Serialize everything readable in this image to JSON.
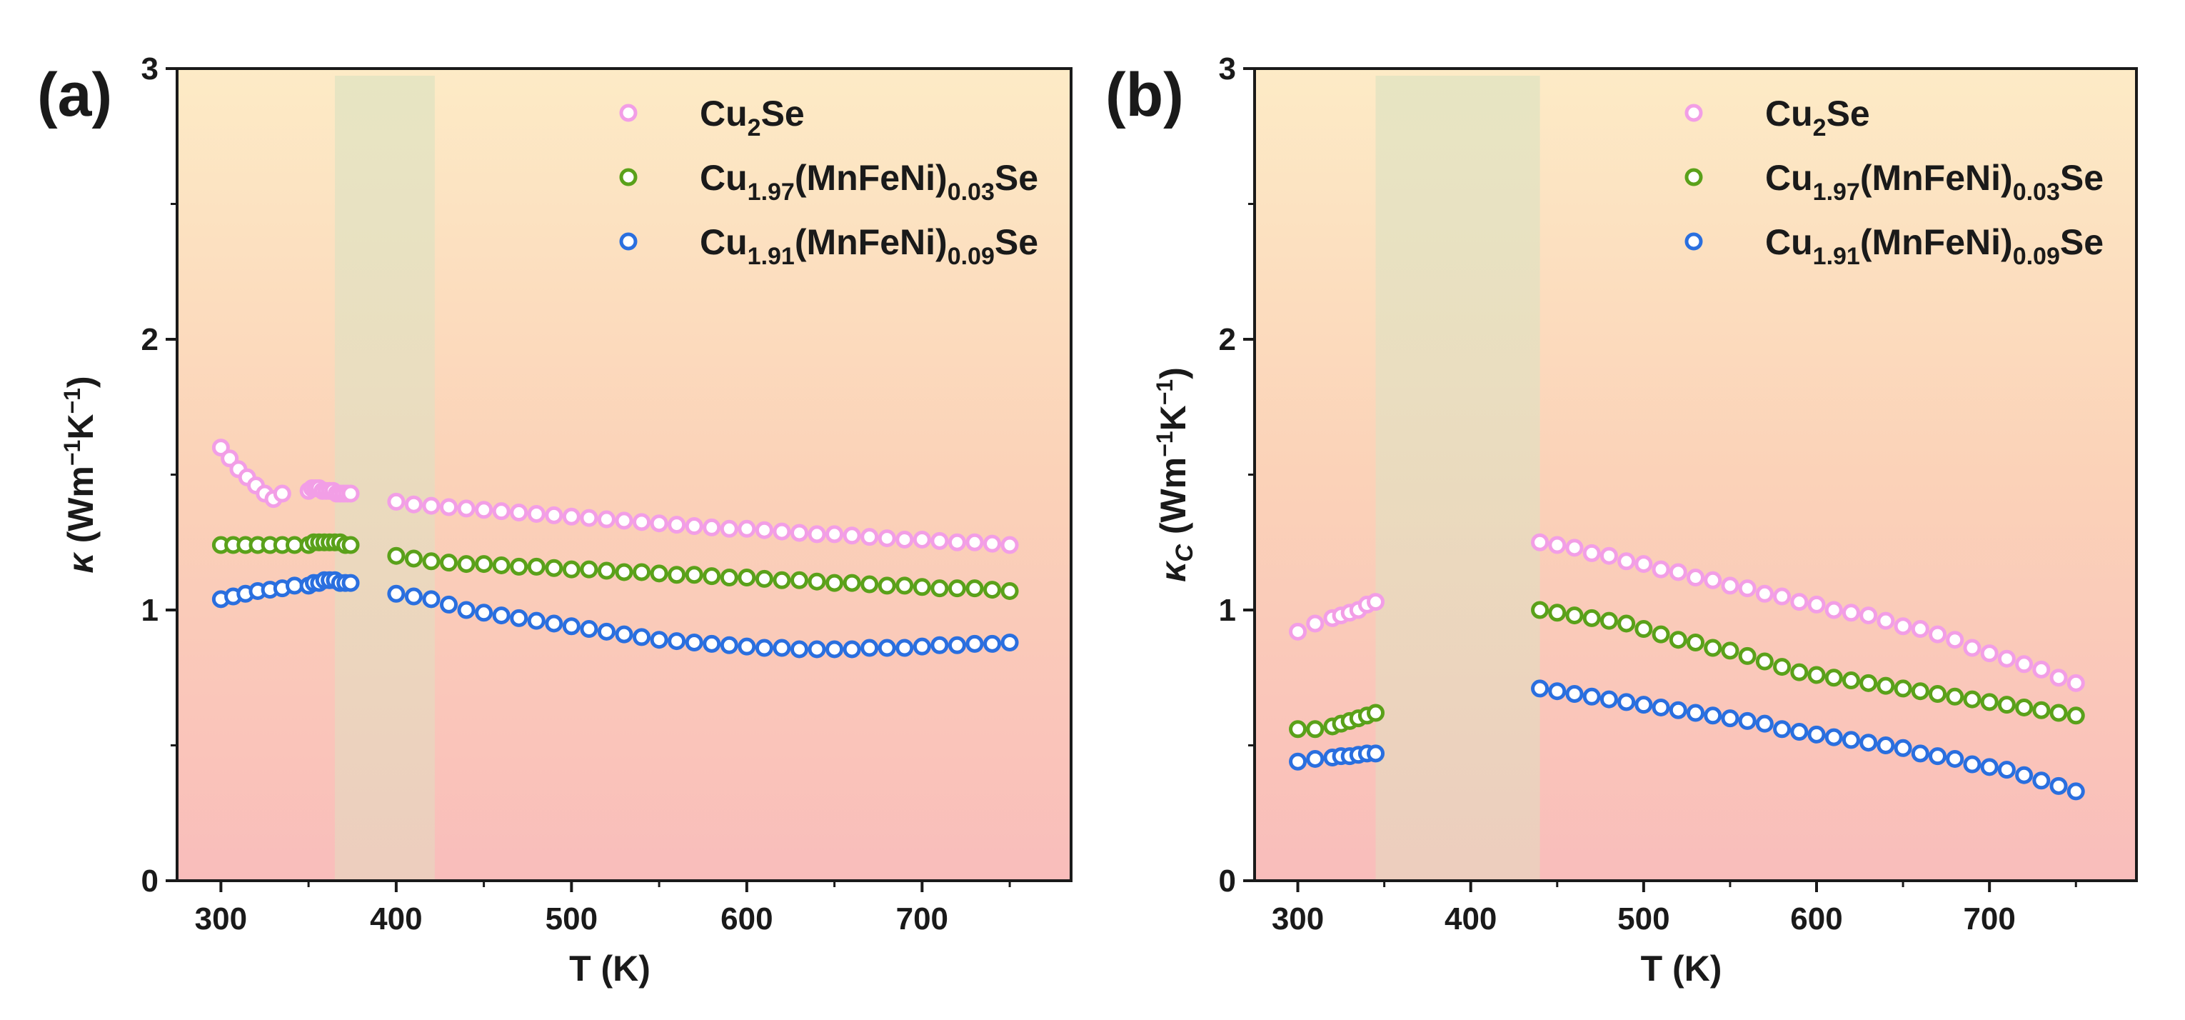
{
  "chart_data": [
    {
      "panel_label": "(a)",
      "type": "scatter",
      "xlabel": "T (K)",
      "ylabel": {
        "base": "κ",
        "open": " (Wm",
        "exp1": "−1",
        "mid": "K",
        "exp2": "−1",
        "close": ")"
      },
      "xlim": [
        275,
        785
      ],
      "ylim": [
        0,
        3
      ],
      "xticks": [
        300,
        400,
        500,
        600,
        700
      ],
      "yticks": [
        0,
        1,
        2,
        3
      ],
      "highlight_band": [
        365,
        422
      ],
      "legend_position": "top-right",
      "series": [
        {
          "name": "Cu2Se",
          "color": "#f29ee6",
          "x": [
            300,
            305,
            310,
            315,
            320,
            325,
            330,
            335,
            350,
            352,
            354,
            356,
            358,
            360,
            362,
            364,
            366,
            368,
            370,
            372,
            374,
            400,
            410,
            420,
            430,
            440,
            450,
            460,
            470,
            480,
            490,
            500,
            510,
            520,
            530,
            540,
            550,
            560,
            570,
            580,
            590,
            600,
            610,
            620,
            630,
            640,
            650,
            660,
            670,
            680,
            690,
            700,
            710,
            720,
            730,
            740,
            750
          ],
          "y": [
            1.6,
            1.56,
            1.52,
            1.49,
            1.46,
            1.43,
            1.41,
            1.43,
            1.44,
            1.45,
            1.45,
            1.45,
            1.44,
            1.44,
            1.44,
            1.44,
            1.43,
            1.43,
            1.43,
            1.43,
            1.43,
            1.4,
            1.39,
            1.385,
            1.38,
            1.375,
            1.37,
            1.365,
            1.36,
            1.355,
            1.35,
            1.345,
            1.34,
            1.335,
            1.33,
            1.325,
            1.32,
            1.315,
            1.31,
            1.305,
            1.3,
            1.3,
            1.295,
            1.29,
            1.285,
            1.28,
            1.28,
            1.275,
            1.27,
            1.265,
            1.26,
            1.26,
            1.255,
            1.25,
            1.25,
            1.245,
            1.24
          ]
        },
        {
          "name": "Cu1.97(MnFeNi)0.03Se",
          "color": "#5aa11a",
          "x": [
            300,
            307,
            314,
            321,
            328,
            335,
            342,
            350,
            353,
            356,
            359,
            362,
            365,
            368,
            371,
            374,
            400,
            410,
            420,
            430,
            440,
            450,
            460,
            470,
            480,
            490,
            500,
            510,
            520,
            530,
            540,
            550,
            560,
            570,
            580,
            590,
            600,
            610,
            620,
            630,
            640,
            650,
            660,
            670,
            680,
            690,
            700,
            710,
            720,
            730,
            740,
            750
          ],
          "y": [
            1.24,
            1.24,
            1.24,
            1.24,
            1.24,
            1.24,
            1.24,
            1.24,
            1.25,
            1.25,
            1.25,
            1.25,
            1.25,
            1.25,
            1.24,
            1.24,
            1.2,
            1.19,
            1.18,
            1.175,
            1.17,
            1.17,
            1.165,
            1.16,
            1.16,
            1.155,
            1.15,
            1.15,
            1.145,
            1.14,
            1.14,
            1.135,
            1.13,
            1.13,
            1.125,
            1.12,
            1.12,
            1.115,
            1.11,
            1.11,
            1.105,
            1.1,
            1.1,
            1.095,
            1.09,
            1.09,
            1.085,
            1.08,
            1.08,
            1.08,
            1.075,
            1.07
          ]
        },
        {
          "name": "Cu1.91(MnFeNi)0.09Se",
          "color": "#2a6fdf",
          "x": [
            300,
            307,
            314,
            321,
            328,
            335,
            342,
            350,
            353,
            356,
            359,
            362,
            365,
            368,
            371,
            374,
            400,
            410,
            420,
            430,
            440,
            450,
            460,
            470,
            480,
            490,
            500,
            510,
            520,
            530,
            540,
            550,
            560,
            570,
            580,
            590,
            600,
            610,
            620,
            630,
            640,
            650,
            660,
            670,
            680,
            690,
            700,
            710,
            720,
            730,
            740,
            750
          ],
          "y": [
            1.04,
            1.05,
            1.06,
            1.07,
            1.075,
            1.08,
            1.09,
            1.09,
            1.1,
            1.1,
            1.11,
            1.11,
            1.11,
            1.1,
            1.1,
            1.1,
            1.06,
            1.05,
            1.04,
            1.02,
            1.0,
            0.99,
            0.98,
            0.97,
            0.96,
            0.95,
            0.94,
            0.93,
            0.92,
            0.91,
            0.9,
            0.89,
            0.885,
            0.88,
            0.875,
            0.87,
            0.865,
            0.86,
            0.86,
            0.855,
            0.855,
            0.855,
            0.855,
            0.86,
            0.86,
            0.86,
            0.865,
            0.87,
            0.87,
            0.875,
            0.875,
            0.88
          ]
        }
      ]
    },
    {
      "panel_label": "(b)",
      "type": "scatter",
      "xlabel": "T (K)",
      "ylabel": {
        "base": "κ",
        "sub": "C",
        "open": " (Wm",
        "exp1": "−1",
        "mid": "K",
        "exp2": "−1",
        "close": ")"
      },
      "xlim": [
        275,
        785
      ],
      "ylim": [
        0,
        3
      ],
      "xticks": [
        300,
        400,
        500,
        600,
        700
      ],
      "yticks": [
        0,
        1,
        2,
        3
      ],
      "highlight_band": [
        345,
        440
      ],
      "legend_position": "top-right",
      "series": [
        {
          "name": "Cu2Se",
          "color": "#f29ee6",
          "x": [
            300,
            310,
            320,
            325,
            330,
            335,
            340,
            345,
            440,
            450,
            460,
            470,
            480,
            490,
            500,
            510,
            520,
            530,
            540,
            550,
            560,
            570,
            580,
            590,
            600,
            610,
            620,
            630,
            640,
            650,
            660,
            670,
            680,
            690,
            700,
            710,
            720,
            730,
            740,
            750
          ],
          "y": [
            0.92,
            0.95,
            0.97,
            0.98,
            0.99,
            1.0,
            1.02,
            1.03,
            1.25,
            1.24,
            1.23,
            1.21,
            1.2,
            1.18,
            1.17,
            1.15,
            1.14,
            1.12,
            1.11,
            1.09,
            1.08,
            1.06,
            1.05,
            1.03,
            1.02,
            1.0,
            0.99,
            0.98,
            0.96,
            0.94,
            0.93,
            0.91,
            0.89,
            0.86,
            0.84,
            0.82,
            0.8,
            0.78,
            0.75,
            0.73
          ]
        },
        {
          "name": "Cu1.97(MnFeNi)0.03Se",
          "color": "#5aa11a",
          "x": [
            300,
            310,
            320,
            325,
            330,
            335,
            340,
            345,
            440,
            450,
            460,
            470,
            480,
            490,
            500,
            510,
            520,
            530,
            540,
            550,
            560,
            570,
            580,
            590,
            600,
            610,
            620,
            630,
            640,
            650,
            660,
            670,
            680,
            690,
            700,
            710,
            720,
            730,
            740,
            750
          ],
          "y": [
            0.56,
            0.56,
            0.57,
            0.58,
            0.59,
            0.6,
            0.61,
            0.62,
            1.0,
            0.99,
            0.98,
            0.97,
            0.96,
            0.95,
            0.93,
            0.91,
            0.89,
            0.88,
            0.86,
            0.85,
            0.83,
            0.81,
            0.79,
            0.77,
            0.76,
            0.75,
            0.74,
            0.73,
            0.72,
            0.71,
            0.7,
            0.69,
            0.68,
            0.67,
            0.66,
            0.65,
            0.64,
            0.63,
            0.62,
            0.61
          ]
        },
        {
          "name": "Cu1.91(MnFeNi)0.09Se",
          "color": "#2a6fdf",
          "x": [
            300,
            310,
            320,
            325,
            330,
            335,
            340,
            345,
            440,
            450,
            460,
            470,
            480,
            490,
            500,
            510,
            520,
            530,
            540,
            550,
            560,
            570,
            580,
            590,
            600,
            610,
            620,
            630,
            640,
            650,
            660,
            670,
            680,
            690,
            700,
            710,
            720,
            730,
            740,
            750
          ],
          "y": [
            0.44,
            0.45,
            0.455,
            0.46,
            0.46,
            0.465,
            0.47,
            0.47,
            0.71,
            0.7,
            0.69,
            0.68,
            0.67,
            0.66,
            0.65,
            0.64,
            0.63,
            0.62,
            0.61,
            0.6,
            0.59,
            0.58,
            0.56,
            0.55,
            0.54,
            0.53,
            0.52,
            0.51,
            0.5,
            0.49,
            0.47,
            0.46,
            0.45,
            0.43,
            0.42,
            0.41,
            0.39,
            0.37,
            0.35,
            0.33
          ]
        }
      ]
    }
  ],
  "legend_labels": [
    {
      "base": "Cu",
      "sub1": "2",
      "mid": "Se",
      "sub2": "",
      "tail": ""
    },
    {
      "base": "Cu",
      "sub1": "1.97",
      "mid": "(MnFeNi)",
      "sub2": "0.03",
      "tail": "Se"
    },
    {
      "base": "Cu",
      "sub1": "1.91",
      "mid": "(MnFeNi)",
      "sub2": "0.09",
      "tail": "Se"
    }
  ]
}
